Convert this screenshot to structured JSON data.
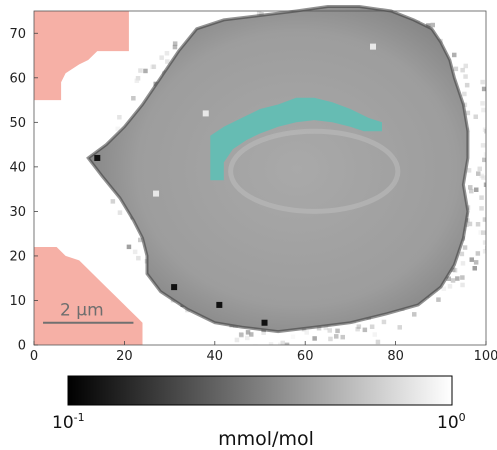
{
  "chart_data": {
    "type": "heatmap",
    "title": "",
    "xlabel": "",
    "ylabel": "",
    "xlim": [
      0,
      100
    ],
    "ylim": [
      0,
      75
    ],
    "x_ticks": [
      0,
      20,
      40,
      60,
      80,
      100
    ],
    "y_ticks": [
      0,
      10,
      20,
      30,
      40,
      50,
      60,
      70
    ],
    "x_tick_labels": [
      "0",
      "20",
      "40",
      "60",
      "80",
      "100"
    ],
    "y_tick_labels": [
      "0",
      "10",
      "20",
      "30",
      "40",
      "50",
      "60",
      "70"
    ],
    "colormap": "grayscale",
    "colorbar": {
      "scale": "log",
      "min": 0.1,
      "max": 1,
      "min_label_base": "10",
      "min_label_exp": "-1",
      "max_label_base": "10",
      "max_label_exp": "0",
      "label": "mmol/mol"
    },
    "scale_bar": {
      "label": "2 µm",
      "from": [
        2,
        5
      ],
      "to": [
        22,
        5
      ]
    },
    "masked_regions": [
      {
        "name": "top-left",
        "color": "#f6b0a6",
        "outline": [
          [
            0,
            75
          ],
          [
            21,
            75
          ],
          [
            21,
            66
          ],
          [
            14,
            66
          ],
          [
            12,
            64
          ],
          [
            10,
            63
          ],
          [
            7,
            61
          ],
          [
            6,
            59
          ],
          [
            6,
            55
          ],
          [
            0,
            55
          ]
        ]
      },
      {
        "name": "bottom-left",
        "color": "#f6b0a6",
        "outline": [
          [
            0,
            22
          ],
          [
            5,
            22
          ],
          [
            7,
            20
          ],
          [
            10,
            19
          ],
          [
            12,
            17
          ],
          [
            14,
            15
          ],
          [
            16,
            13
          ],
          [
            18,
            11
          ],
          [
            20,
            9
          ],
          [
            22,
            7
          ],
          [
            23,
            6
          ],
          [
            24,
            5
          ],
          [
            24,
            0
          ],
          [
            0,
            0
          ]
        ]
      }
    ],
    "highlight_region": {
      "color": "#5fbfb5",
      "outline": [
        [
          39,
          37
        ],
        [
          39,
          47
        ],
        [
          42,
          49
        ],
        [
          46,
          51
        ],
        [
          50,
          53
        ],
        [
          54,
          54
        ],
        [
          58,
          55.5
        ],
        [
          62,
          55.5
        ],
        [
          66,
          54.5
        ],
        [
          70,
          53
        ],
        [
          74,
          51
        ],
        [
          77,
          50
        ],
        [
          77,
          48
        ],
        [
          73,
          48
        ],
        [
          70,
          49
        ],
        [
          66,
          50
        ],
        [
          62,
          50.5
        ],
        [
          58,
          50
        ],
        [
          54,
          49
        ],
        [
          50,
          47.5
        ],
        [
          47,
          46
        ],
        [
          44,
          44
        ],
        [
          42,
          41
        ],
        [
          42,
          37
        ]
      ]
    },
    "cell_outline": [
      [
        12,
        42
      ],
      [
        16,
        45
      ],
      [
        20,
        49
      ],
      [
        24,
        54
      ],
      [
        28,
        60
      ],
      [
        32,
        66
      ],
      [
        36,
        71
      ],
      [
        42,
        73
      ],
      [
        50,
        74
      ],
      [
        58,
        75
      ],
      [
        65,
        76
      ],
      [
        72,
        76
      ],
      [
        79,
        75
      ],
      [
        84,
        73
      ],
      [
        88,
        71
      ],
      [
        90,
        68
      ],
      [
        92,
        64
      ],
      [
        93,
        60
      ],
      [
        95,
        54
      ],
      [
        96,
        48
      ],
      [
        96,
        42
      ],
      [
        95,
        36
      ],
      [
        96,
        30
      ],
      [
        95,
        24
      ],
      [
        93,
        18
      ],
      [
        90,
        13
      ],
      [
        85,
        9
      ],
      [
        78,
        7
      ],
      [
        70,
        5
      ],
      [
        62,
        4
      ],
      [
        54,
        3
      ],
      [
        46,
        4
      ],
      [
        40,
        5
      ],
      [
        34,
        8
      ],
      [
        28,
        12
      ],
      [
        25,
        16
      ],
      [
        25,
        20
      ],
      [
        24,
        24
      ],
      [
        22,
        28
      ],
      [
        19,
        33
      ],
      [
        15,
        38
      ]
    ],
    "dark_spots": [
      [
        14,
        42
      ],
      [
        31,
        13
      ],
      [
        41,
        9
      ],
      [
        51,
        5
      ]
    ],
    "bright_spots": [
      [
        27,
        34
      ],
      [
        75,
        67
      ],
      [
        38,
        52
      ]
    ]
  }
}
